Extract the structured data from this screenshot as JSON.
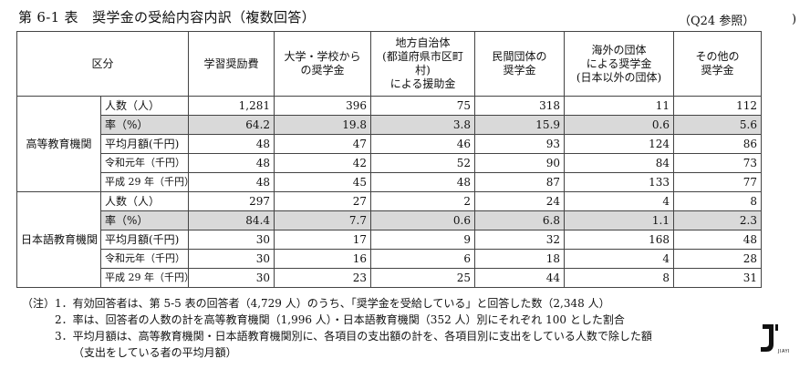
{
  "title": "第 6-1 表　奨学金の受給内容内訳（複数回答）",
  "ref": "（Q24 参照）",
  "paren": ")",
  "header": {
    "category": "区分",
    "cols": [
      [
        "学習奨励費"
      ],
      [
        "大学・学校から",
        "の奨学金"
      ],
      [
        "地方自治体",
        "(都道府県市区町村)",
        "による援助金"
      ],
      [
        "民間団体の",
        "奨学金"
      ],
      [
        "海外の団体",
        "による奨学金",
        "(日本以外の団体)"
      ],
      [
        "その他の",
        "奨学金"
      ]
    ]
  },
  "groups": [
    {
      "name": "高等教育機関",
      "rows": [
        {
          "label": "人数（人）",
          "values": [
            "1,281",
            "396",
            "75",
            "318",
            "11",
            "112"
          ]
        },
        {
          "label": "率（%）",
          "values": [
            "64.2",
            "19.8",
            "3.8",
            "15.9",
            "0.6",
            "5.6"
          ]
        },
        {
          "label": "平均月額(千円)",
          "values": [
            "48",
            "47",
            "46",
            "93",
            "124",
            "86"
          ]
        },
        {
          "label": "令和元年（千円）",
          "values": [
            "48",
            "42",
            "52",
            "90",
            "84",
            "73"
          ]
        },
        {
          "label": "平成 29 年（千円）",
          "values": [
            "48",
            "45",
            "48",
            "87",
            "133",
            "77"
          ]
        }
      ]
    },
    {
      "name": "日本語教育機関",
      "rows": [
        {
          "label": "人数（人）",
          "values": [
            "297",
            "27",
            "2",
            "24",
            "4",
            "8"
          ]
        },
        {
          "label": "率（%）",
          "values": [
            "84.4",
            "7.7",
            "0.6",
            "6.8",
            "1.1",
            "2.3"
          ]
        },
        {
          "label": "平均月額(千円)",
          "values": [
            "30",
            "17",
            "9",
            "32",
            "168",
            "48"
          ]
        },
        {
          "label": "令和元年（千円）",
          "values": [
            "30",
            "16",
            "6",
            "18",
            "4",
            "28"
          ]
        },
        {
          "label": "平成 29 年（千円）",
          "values": [
            "30",
            "23",
            "25",
            "44",
            "8",
            "31"
          ]
        }
      ]
    }
  ],
  "notes": {
    "label": "（注）",
    "items": [
      "1．有効回答者は、第 5-5 表の回答者（4,729 人）のうち、「奨学金を受給している」と回答した数（2,348 人）",
      "2．率は、回答者の人数の計を高等教育機関（1,996 人）・日本語教育機関（352 人）別にそれぞれ 100 とした割合",
      "3．平均月額は、高等教育機関・日本語教育機関別に、各項目の支出額の計を、各項目別に支出をしている人数で除した額"
    ],
    "continuation": "（支出をしている者の平均月額）"
  },
  "logo": {
    "text": "JIAYI",
    "color": "#111111"
  }
}
